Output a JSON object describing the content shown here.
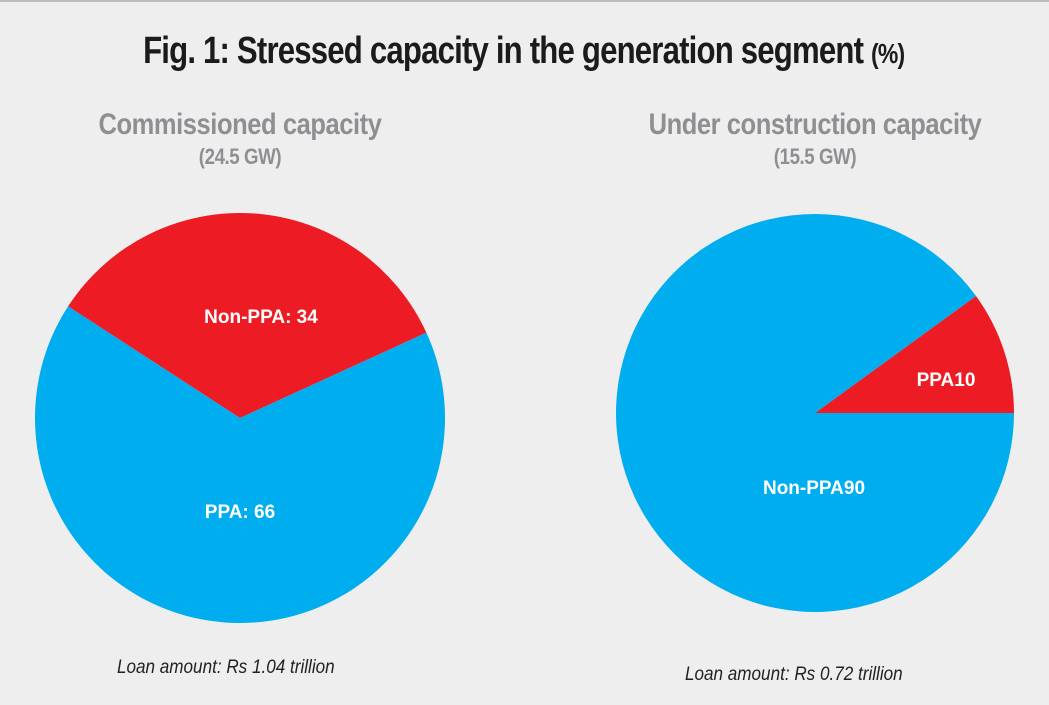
{
  "chart_data": [
    {
      "type": "pie",
      "title": "Commissioned capacity",
      "subtitle": "(24.5 GW)",
      "slices": [
        {
          "label": "Non-PPA: 34",
          "name": "Non-PPA",
          "value": 34,
          "color": "#ed1c24"
        },
        {
          "label": "PPA: 66",
          "name": "PPA",
          "value": 66,
          "color": "#00aeef"
        }
      ],
      "footnote": "Loan amount: Rs 1.04 trillion"
    },
    {
      "type": "pie",
      "title": "Under construction capacity",
      "subtitle": "(15.5 GW)",
      "slices": [
        {
          "label": "PPA10",
          "name": "PPA",
          "value": 10,
          "color": "#ed1c24"
        },
        {
          "label": "Non-PPA90",
          "name": "Non-PPA",
          "value": 90,
          "color": "#00aeef"
        }
      ],
      "footnote": "Loan amount: Rs 0.72 trillion"
    }
  ],
  "figure": {
    "title": "Fig. 1: Stressed capacity in the generation segment",
    "unit": "(%)"
  }
}
